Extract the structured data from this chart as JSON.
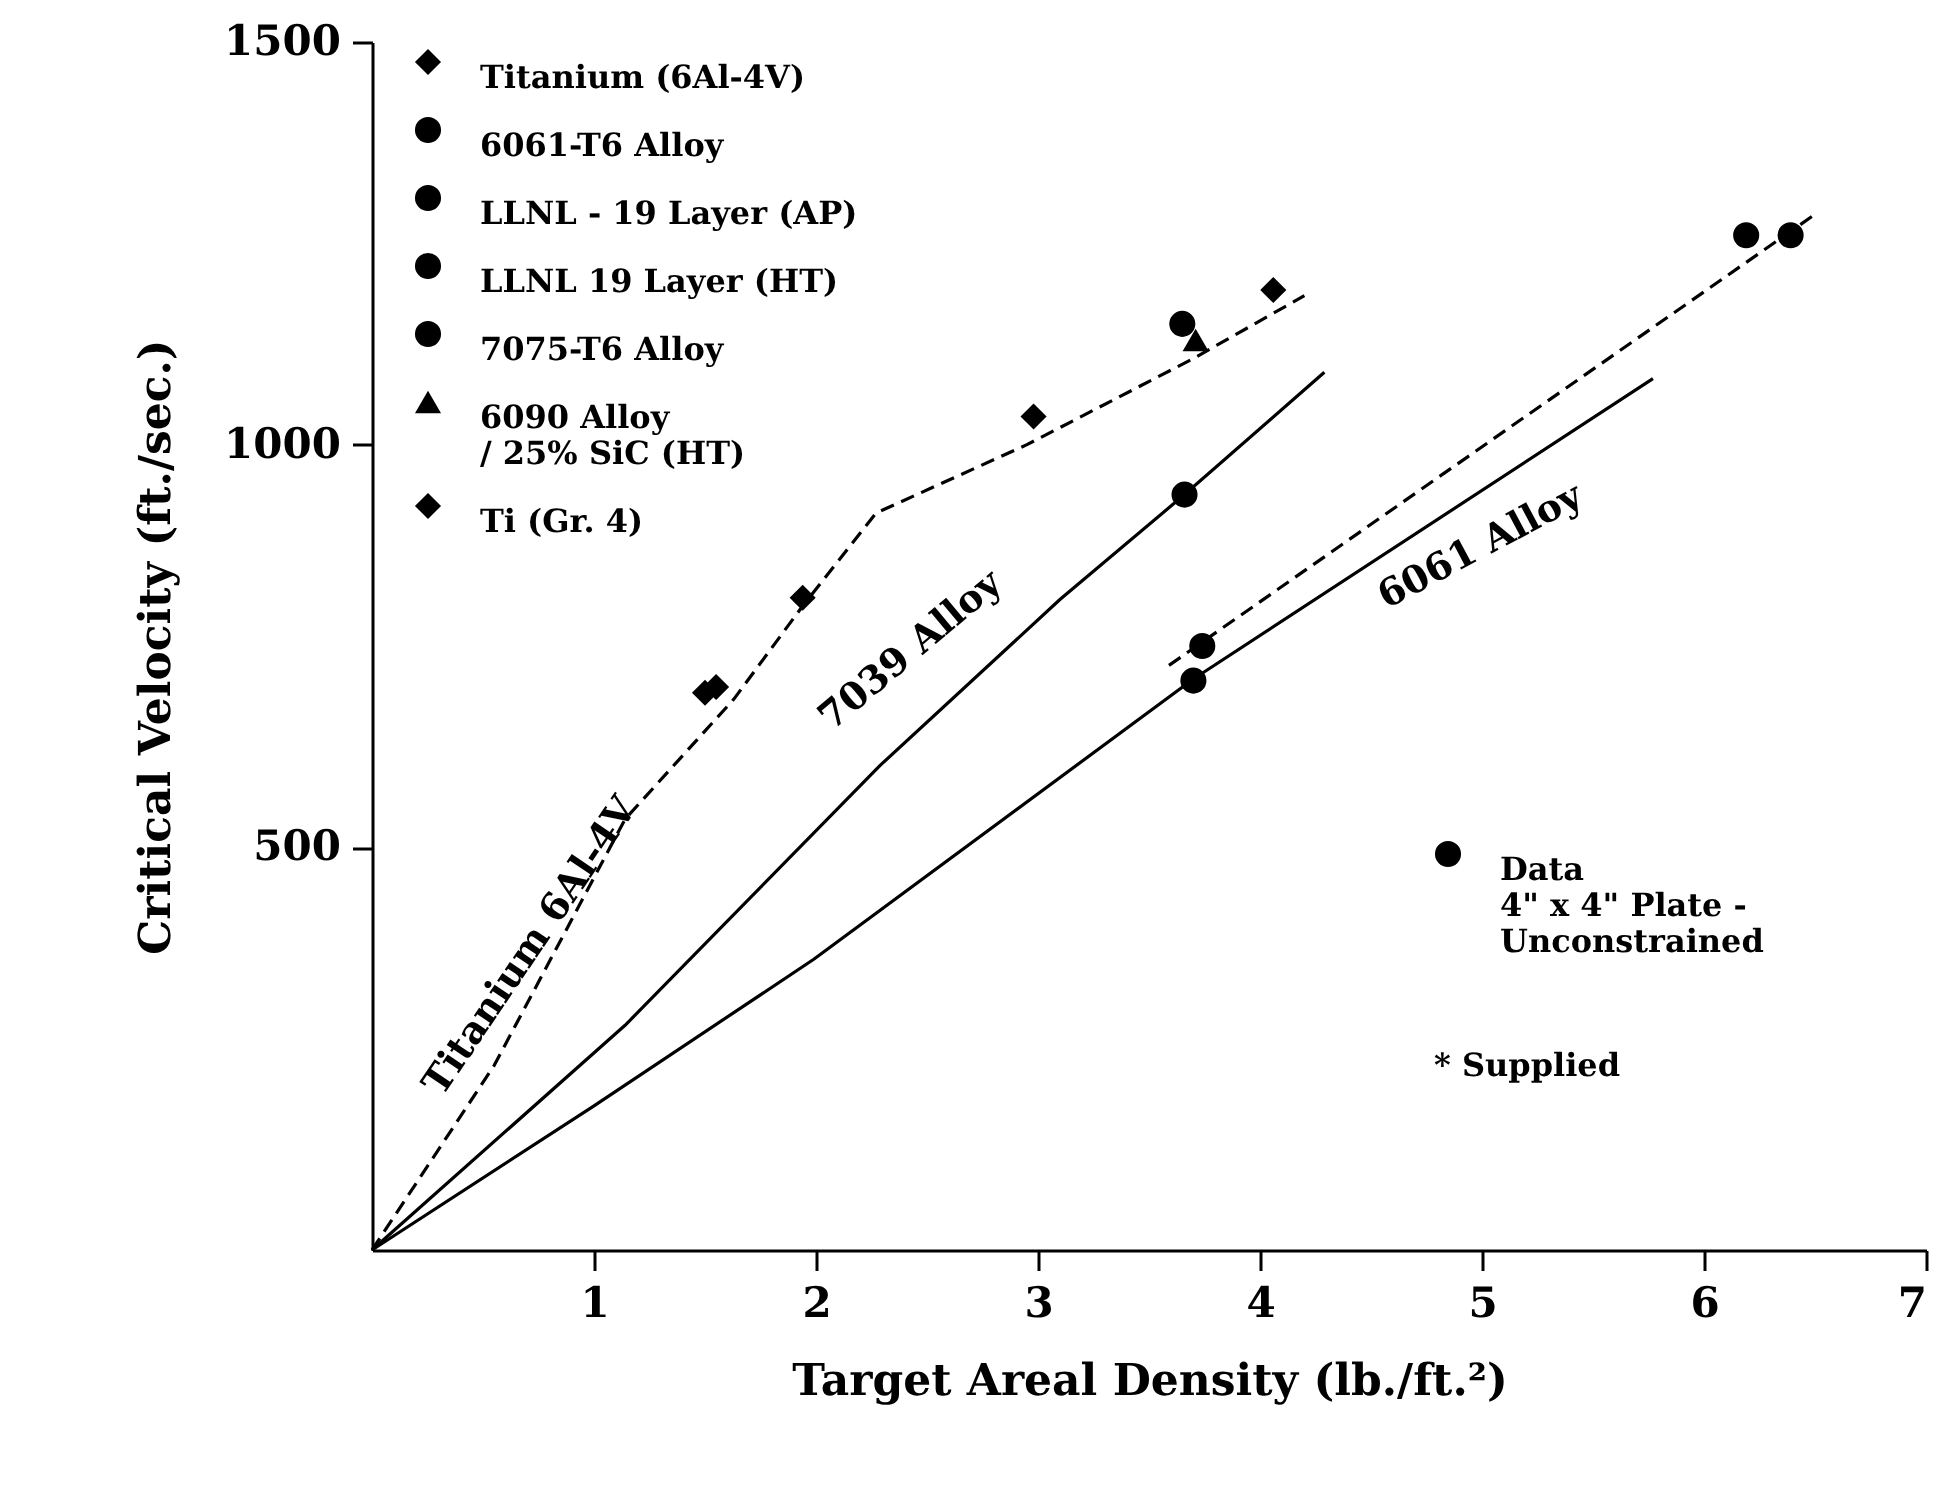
{
  "chart_data": {
    "type": "scatter",
    "xlabel": "Target Areal Density (lb./ft.²)",
    "ylabel": "Critical Velocity (ft./sec.)",
    "xlim": [
      0,
      7
    ],
    "ylim": [
      0,
      1500
    ],
    "xticks": [
      1,
      2,
      3,
      4,
      5,
      6,
      7
    ],
    "yticks": [
      500,
      1000,
      1500
    ],
    "grid": false,
    "legend": "top left",
    "series": [
      {
        "type": "line",
        "color": "#000000",
        "line_style": "dashed",
        "x": [
          0,
          0.55,
          1.14,
          1.63,
          1.93,
          2.27,
          2.95,
          3.7,
          4.2
        ],
        "values": [
          0,
          229,
          535,
          684,
          796,
          915,
          1000,
          1107,
          1185
        ]
      },
      {
        "type": "line",
        "color": "#000000",
        "line_style": "solid",
        "x": [
          0,
          1.14,
          2.29,
          3.1,
          3.66,
          4.29
        ],
        "values": [
          0,
          279,
          602,
          808,
          938,
          1090
        ]
      },
      {
        "type": "line",
        "color": "#000000",
        "line_style": "solid",
        "x": [
          0,
          1.0,
          1.99,
          3.7,
          5.77
        ],
        "values": [
          0,
          179,
          361,
          709,
          1082
        ]
      },
      {
        "type": "line",
        "color": "#000000",
        "line_style": "dashed",
        "x": [
          3.59,
          6.5
        ],
        "values": [
          726,
          1286
        ]
      },
      {
        "type": "scatter",
        "name": "Titanium (6Al-4V)",
        "color": "#000000",
        "marker": "diamond",
        "x": [
          1.94,
          2.98,
          4.06
        ],
        "values": [
          810,
          1035,
          1192
        ]
      },
      {
        "type": "scatter",
        "name": "6061-T6 Alloy",
        "color": "#000000",
        "marker": "circle",
        "x": [
          3.74
        ],
        "values": [
          750
        ]
      },
      {
        "type": "scatter",
        "name": "LLNL - 19 Layer (AP)",
        "color": "#000000",
        "marker": "circle",
        "x": [
          6.39
        ],
        "values": [
          1260
        ]
      },
      {
        "type": "scatter",
        "name": "LLNL 19 Layer (HT)",
        "color": "#000000",
        "marker": "circle",
        "x": [
          6.19
        ],
        "values": [
          1260
        ]
      },
      {
        "type": "scatter",
        "name": "7075-T6 Alloy",
        "color": "#000000",
        "marker": "circle",
        "x": [
          3.65
        ],
        "values": [
          1150
        ]
      },
      {
        "type": "scatter",
        "name": "6090 Alloy\n/ 25% SiC (HT)",
        "color": "#000000",
        "marker": "triangle",
        "x": [
          3.71
        ],
        "values": [
          1130
        ]
      },
      {
        "type": "scatter",
        "name": "Ti (Gr. 4)",
        "color": "#000000",
        "marker": "diamond",
        "x": [
          1.5,
          1.55
        ],
        "values": [
          692,
          699
        ]
      },
      {
        "name": "Data\n4\" x 4\" Plate -\nUnconstrained",
        "color": "#000000",
        "marker": "circle",
        "x": [
          3.66,
          3.7
        ],
        "values": [
          938,
          707
        ]
      }
    ],
    "annotations": [
      "Titanium 6Al-4V",
      "7039 Alloy",
      "6061 Alloy",
      "*  Supplied"
    ]
  }
}
